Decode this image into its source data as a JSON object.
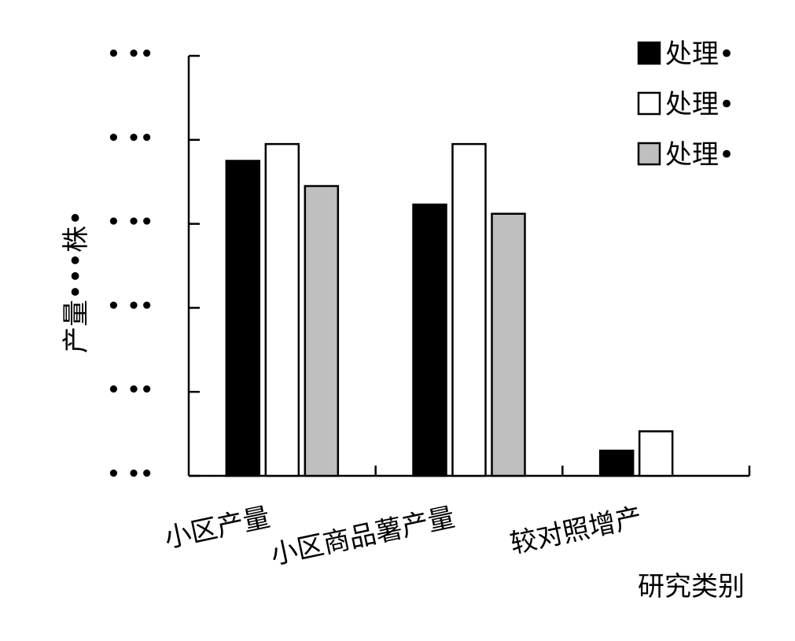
{
  "chart_data": {
    "type": "bar",
    "title": "",
    "xlabel": "研究类别",
    "ylabel": "产量•••株•",
    "categories": [
      "小区产量",
      "小区商品薯产量",
      "较对照增产"
    ],
    "series": [
      {
        "name": "处理•",
        "color": "#000000",
        "values": [
          3.75,
          3.23,
          0.3
        ]
      },
      {
        "name": "处理•",
        "color": "#ffffff",
        "values": [
          3.95,
          3.95,
          0.53
        ]
      },
      {
        "name": "处理•",
        "color": "#bfbfbf",
        "values": [
          3.45,
          3.12,
          null
        ]
      }
    ],
    "ylim": [
      0,
      5
    ],
    "yticks": [
      0,
      1,
      2,
      3,
      4,
      5
    ],
    "ytick_labels": [
      "• ••",
      "• ••",
      "• ••",
      "• ••",
      "• ••",
      "• ••"
    ],
    "grid": false,
    "legend_position": "top-right"
  }
}
